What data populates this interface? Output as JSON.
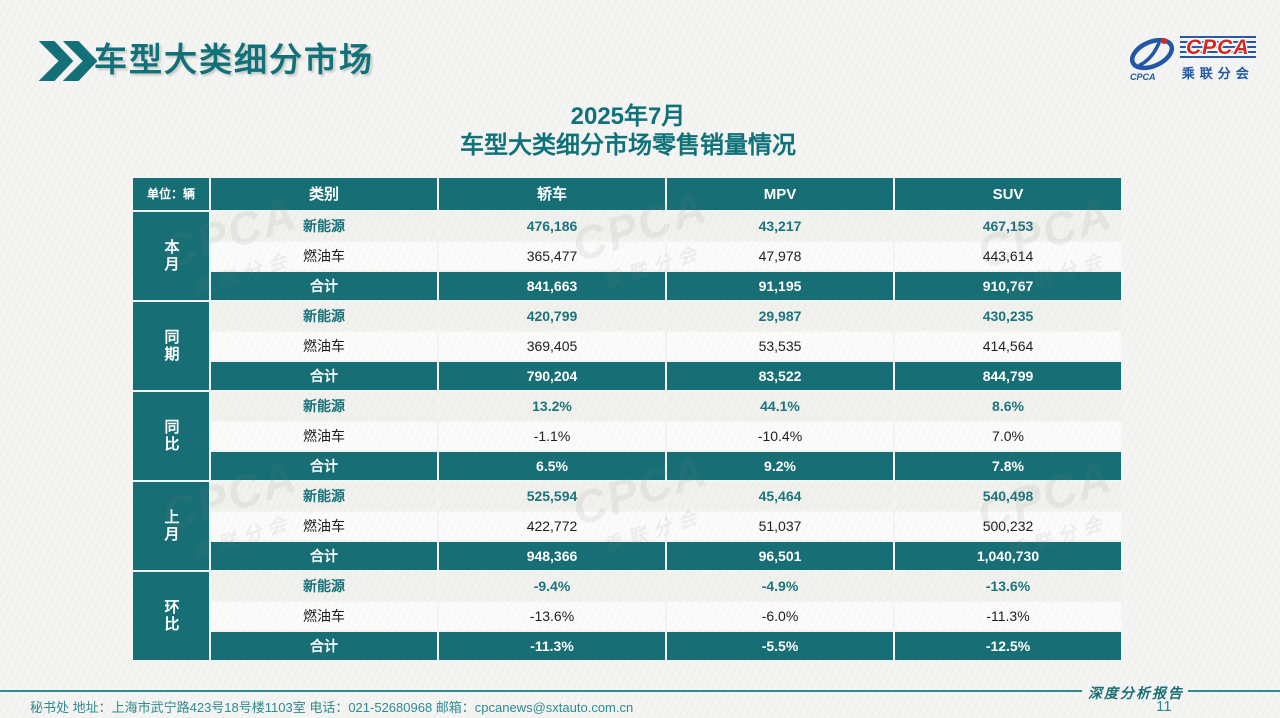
{
  "header": {
    "title": "车型大类细分市场",
    "subtitle_line1": "2025年7月",
    "subtitle_line2": "车型大类细分市场零售销量情况"
  },
  "logo": {
    "wordmark": "CPCA",
    "small_text": "CPCA",
    "org_name": "乘联分会"
  },
  "watermark": {
    "line1": "CPCA",
    "line2": "乘联分会"
  },
  "table": {
    "unit_label": "单位：辆",
    "columns": [
      "类别",
      "轿车",
      "MPV",
      "SUV"
    ],
    "groups": [
      {
        "label": "本月",
        "rows": [
          {
            "name": "新能源",
            "style": "ne",
            "values": [
              "476,186",
              "43,217",
              "467,153"
            ]
          },
          {
            "name": "燃油车",
            "style": "fuel",
            "values": [
              "365,477",
              "47,978",
              "443,614"
            ]
          },
          {
            "name": "合计",
            "style": "total",
            "values": [
              "841,663",
              "91,195",
              "910,767"
            ]
          }
        ]
      },
      {
        "label": "同期",
        "rows": [
          {
            "name": "新能源",
            "style": "ne",
            "values": [
              "420,799",
              "29,987",
              "430,235"
            ]
          },
          {
            "name": "燃油车",
            "style": "fuel",
            "values": [
              "369,405",
              "53,535",
              "414,564"
            ]
          },
          {
            "name": "合计",
            "style": "total",
            "values": [
              "790,204",
              "83,522",
              "844,799"
            ]
          }
        ]
      },
      {
        "label": "同比",
        "rows": [
          {
            "name": "新能源",
            "style": "ne",
            "values": [
              "13.2%",
              "44.1%",
              "8.6%"
            ]
          },
          {
            "name": "燃油车",
            "style": "fuel",
            "values": [
              "-1.1%",
              "-10.4%",
              "7.0%"
            ]
          },
          {
            "name": "合计",
            "style": "total",
            "values": [
              "6.5%",
              "9.2%",
              "7.8%"
            ]
          }
        ]
      },
      {
        "label": "上月",
        "rows": [
          {
            "name": "新能源",
            "style": "ne",
            "values": [
              "525,594",
              "45,464",
              "540,498"
            ]
          },
          {
            "name": "燃油车",
            "style": "fuel",
            "values": [
              "422,772",
              "51,037",
              "500,232"
            ]
          },
          {
            "name": "合计",
            "style": "total",
            "values": [
              "948,366",
              "96,501",
              "1,040,730"
            ]
          }
        ]
      },
      {
        "label": "环比",
        "rows": [
          {
            "name": "新能源",
            "style": "ne",
            "values": [
              "-9.4%",
              "-4.9%",
              "-13.6%"
            ]
          },
          {
            "name": "燃油车",
            "style": "fuel",
            "values": [
              "-13.6%",
              "-6.0%",
              "-11.3%"
            ]
          },
          {
            "name": "合计",
            "style": "total",
            "values": [
              "-11.3%",
              "-5.5%",
              "-12.5%"
            ]
          }
        ]
      }
    ]
  },
  "footer": {
    "info": "秘书处   地址：上海市武宁路423号18号楼1103室  电话：021-52680968   邮箱：cpcanews@sxtauto.com.cn",
    "report_tag": "深度分析报告",
    "page_number": "11"
  },
  "colors": {
    "teal": "#176f75",
    "title_teal": "#107179",
    "footer_teal": "#2f8b90",
    "logo_blue": "#2257a5",
    "logo_red": "#d8251d",
    "background": "#f4f4f2"
  }
}
